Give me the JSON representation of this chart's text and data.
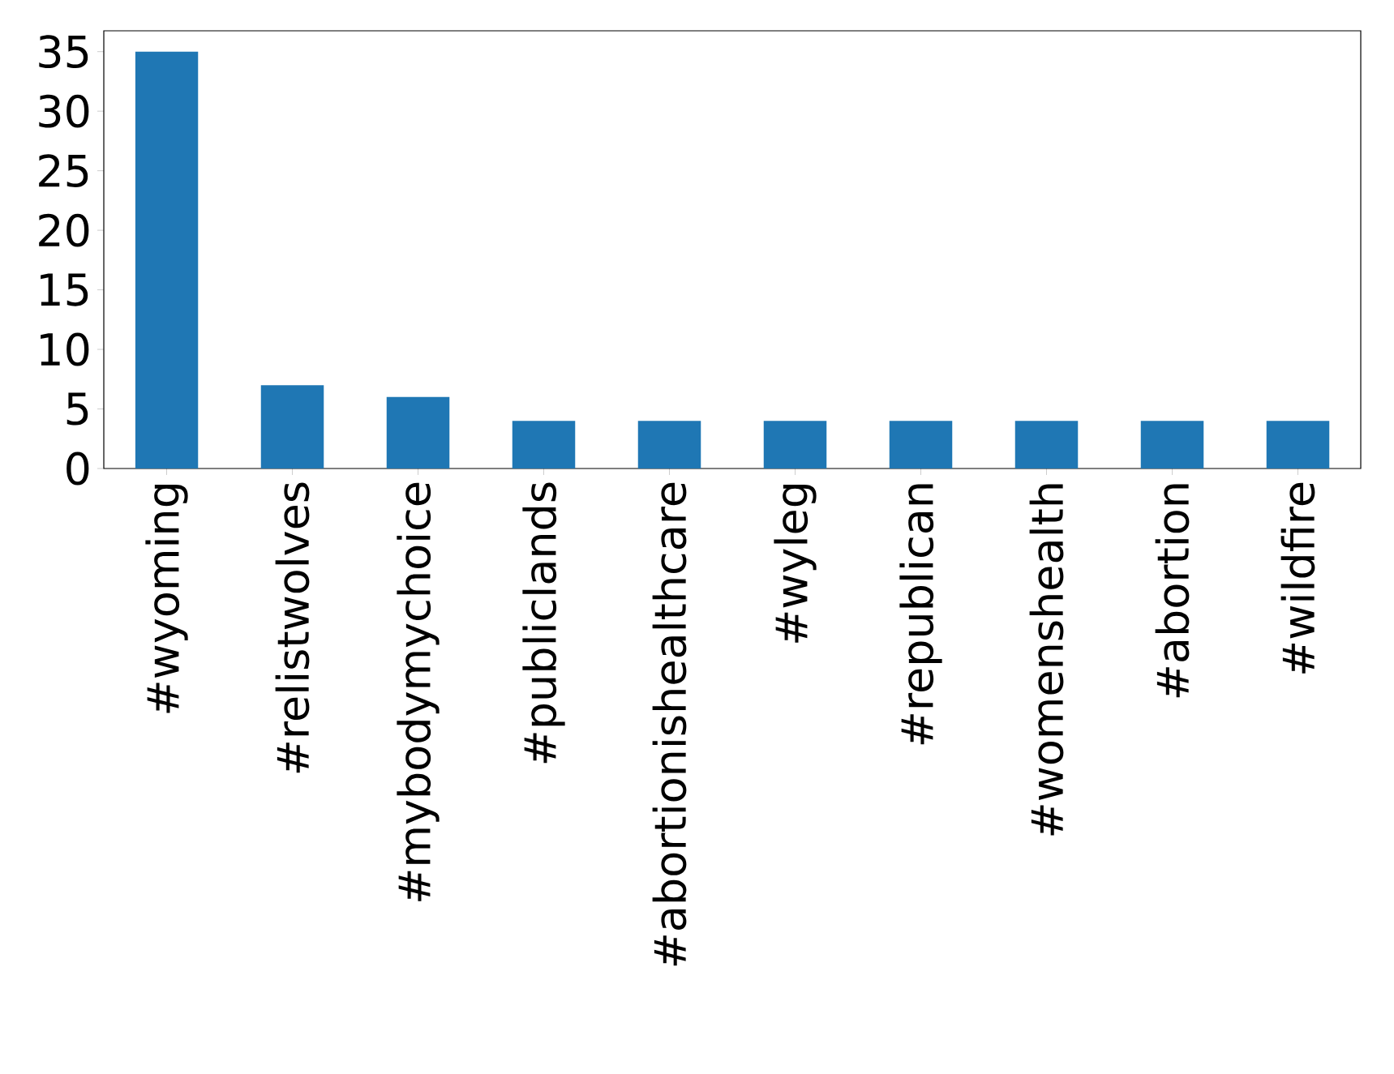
{
  "chart_data": {
    "type": "bar",
    "categories": [
      "#wyoming",
      "#relistwolves",
      "#mybodymychoice",
      "#publiclands",
      "#abortionishealthcare",
      "#wyleg",
      "#republican",
      "#womenshealth",
      "#abortion",
      "#wildfire"
    ],
    "values": [
      35,
      7,
      6,
      4,
      4,
      4,
      4,
      4,
      4,
      4
    ],
    "color": "#1f77b4",
    "ylim": [
      0,
      36.75
    ],
    "yticks": [
      0,
      5,
      10,
      15,
      20,
      25,
      30,
      35
    ],
    "grid": false
  }
}
